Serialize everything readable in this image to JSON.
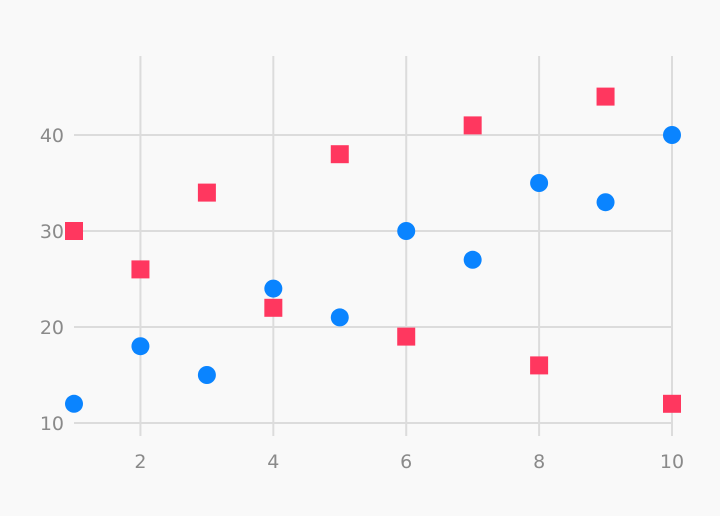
{
  "chart_data": {
    "type": "scatter",
    "title": "",
    "xlabel": "",
    "ylabel": "",
    "xlim": [
      1,
      10
    ],
    "ylim": [
      10,
      45
    ],
    "x_ticks": [
      2,
      4,
      6,
      8,
      10
    ],
    "y_ticks": [
      10,
      20,
      30,
      40
    ],
    "grid": true,
    "legend": "none",
    "series": [
      {
        "marker": "circle",
        "color": "#0a84ff",
        "points": [
          {
            "x": 1,
            "y": 12
          },
          {
            "x": 2,
            "y": 18
          },
          {
            "x": 3,
            "y": 15
          },
          {
            "x": 4,
            "y": 24
          },
          {
            "x": 5,
            "y": 21
          },
          {
            "x": 6,
            "y": 30
          },
          {
            "x": 7,
            "y": 27
          },
          {
            "x": 8,
            "y": 35
          },
          {
            "x": 9,
            "y": 33
          },
          {
            "x": 10,
            "y": 40
          }
        ]
      },
      {
        "marker": "square",
        "color": "#ff375f",
        "points": [
          {
            "x": 1,
            "y": 30
          },
          {
            "x": 2,
            "y": 26
          },
          {
            "x": 3,
            "y": 34
          },
          {
            "x": 4,
            "y": 22
          },
          {
            "x": 5,
            "y": 38
          },
          {
            "x": 6,
            "y": 19
          },
          {
            "x": 7,
            "y": 41
          },
          {
            "x": 8,
            "y": 16
          },
          {
            "x": 9,
            "y": 44
          },
          {
            "x": 10,
            "y": 12
          }
        ]
      }
    ]
  }
}
